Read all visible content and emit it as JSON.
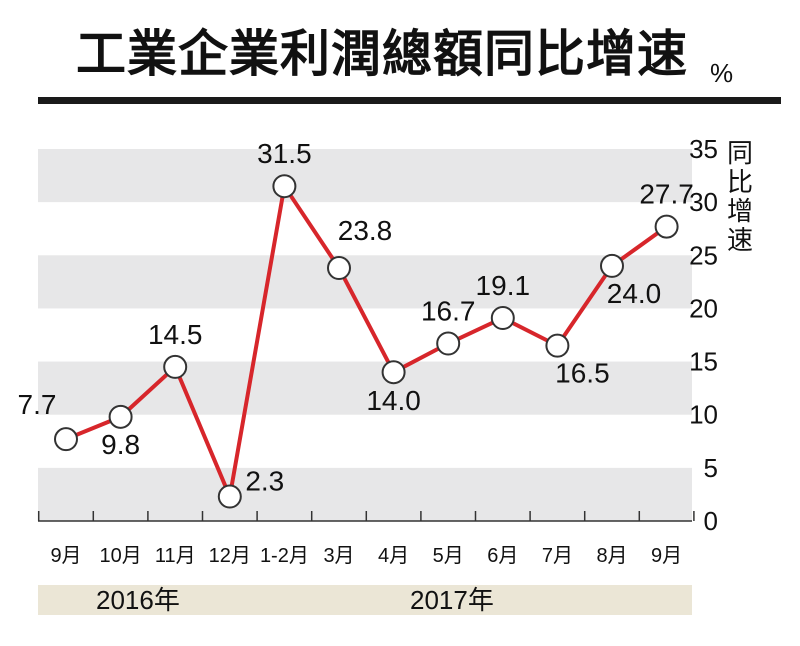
{
  "title": "工業企業利潤總額同比增速",
  "unit": "%",
  "chart_data": {
    "type": "line",
    "categories": [
      "9月",
      "10月",
      "11月",
      "12月",
      "1-2月",
      "3月",
      "4月",
      "5月",
      "6月",
      "7月",
      "8月",
      "9月"
    ],
    "series": [
      {
        "values": [
          7.7,
          9.8,
          14.5,
          2.3,
          31.5,
          23.8,
          14.0,
          16.7,
          19.1,
          16.5,
          24.0,
          27.7
        ]
      }
    ],
    "data_labels": [
      "7.7",
      "9.8",
      "14.5",
      "2.3",
      "31.5",
      "23.8",
      "14.0",
      "16.7",
      "19.1",
      "16.5",
      "24.0",
      "27.7"
    ],
    "ylabel": "同比增速",
    "ylim": [
      0,
      35
    ],
    "yticks": [
      0,
      5,
      10,
      15,
      20,
      25,
      30,
      35
    ],
    "year_groups": [
      "2016年",
      "2017年"
    ],
    "line_color": "#d7262b",
    "band_color": "#e7e7e8"
  }
}
